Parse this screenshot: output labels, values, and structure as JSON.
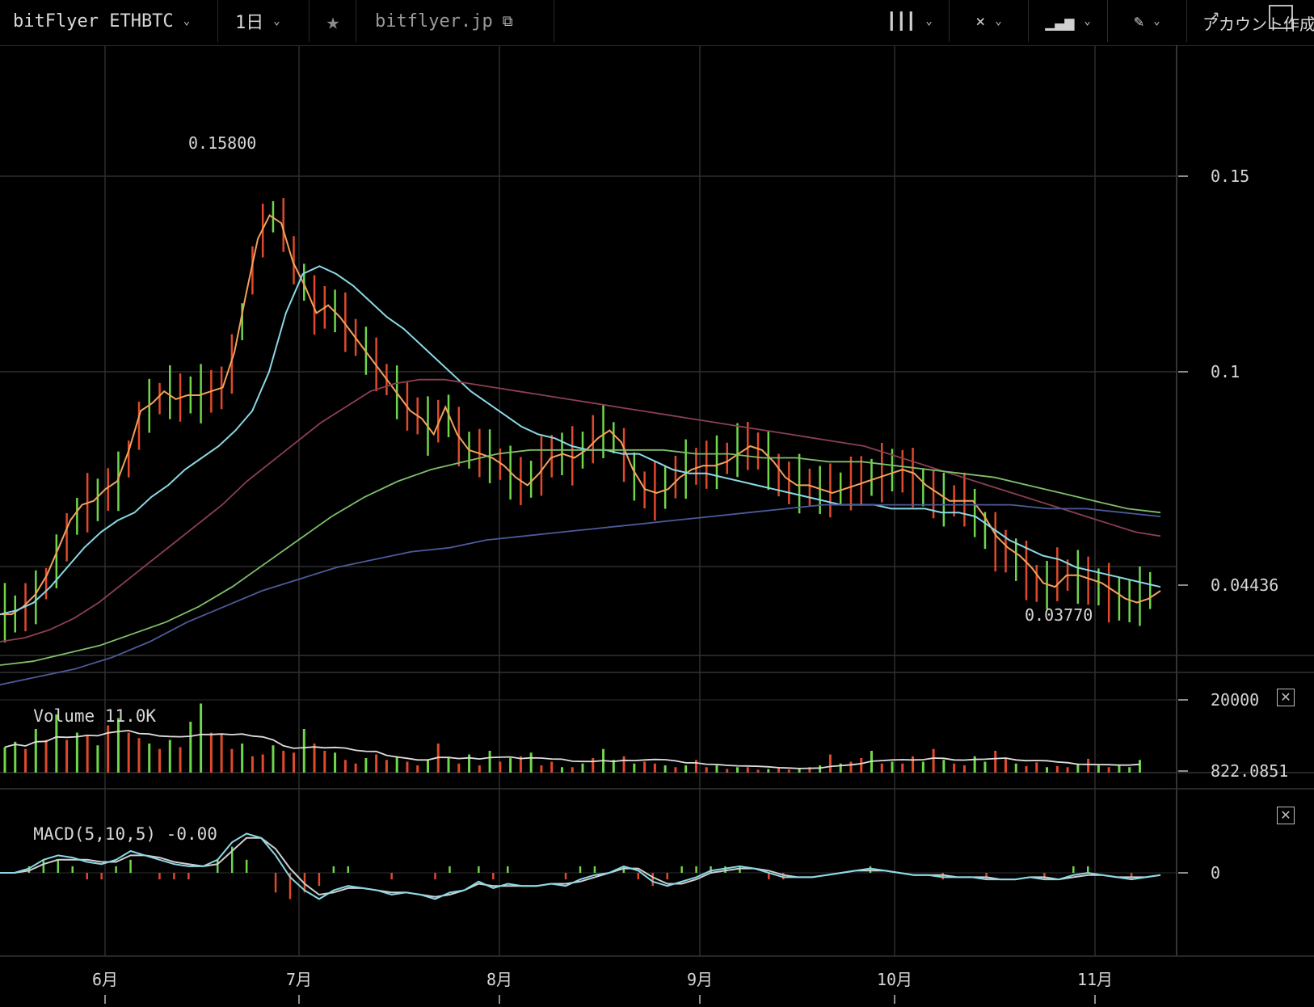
{
  "toolbar": {
    "symbol": "bitFlyer ETHBTC",
    "resolution": "1日",
    "site": "bitflyer.jp",
    "account": "アカウント作成"
  },
  "colors": {
    "up": "#6fd64a",
    "down": "#e0492b",
    "ma_fast": "#f2a25c",
    "ma_mid": "#8ad9e6",
    "ma_slow1": "#8c3f52",
    "ma_slow2": "#7fbf6a",
    "ma_slow3": "#4c5a9a",
    "volume_ma": "#dddddd",
    "grid": "#2e2e2e"
  },
  "price_pane": {
    "annotation_high": "0.15800",
    "annotation_low": "0.03770",
    "last_price": "0.04436"
  },
  "volume_pane": {
    "legend_label": "Volume",
    "legend_value": "11.0K",
    "last_value": "822.0851"
  },
  "macd_pane": {
    "legend_label": "MACD(5,10,5)",
    "legend_value": "-0.00"
  },
  "chart_data": [
    {
      "type": "line",
      "title": "",
      "x_labels": [
        "6月",
        "7月",
        "8月",
        "9月",
        "10月",
        "11月"
      ],
      "y_ticks": [
        "0.15",
        "0.1",
        "0.04436"
      ],
      "ylim": [
        0.02,
        0.18
      ],
      "series": [
        {
          "values": [
            0.038,
            0.038,
            0.04,
            0.043,
            0.048,
            0.055,
            0.062,
            0.066,
            0.067,
            0.07,
            0.072,
            0.08,
            0.09,
            0.092,
            0.095,
            0.093,
            0.094,
            0.094,
            0.095,
            0.096,
            0.105,
            0.12,
            0.134,
            0.14,
            0.138,
            0.128,
            0.122,
            0.115,
            0.117,
            0.114,
            0.11,
            0.106,
            0.102,
            0.098,
            0.094,
            0.09,
            0.088,
            0.084,
            0.091,
            0.084,
            0.08,
            0.079,
            0.078,
            0.076,
            0.073,
            0.071,
            0.074,
            0.078,
            0.079,
            0.078,
            0.08,
            0.083,
            0.085,
            0.082,
            0.075,
            0.07,
            0.069,
            0.07,
            0.073,
            0.075,
            0.076,
            0.076,
            0.077,
            0.079,
            0.081,
            0.08,
            0.077,
            0.073,
            0.071,
            0.071,
            0.07,
            0.069,
            0.07,
            0.071,
            0.072,
            0.073,
            0.074,
            0.075,
            0.074,
            0.071,
            0.069,
            0.067,
            0.067,
            0.067,
            0.063,
            0.058,
            0.055,
            0.053,
            0.05,
            0.046,
            0.045,
            0.048,
            0.048,
            0.047,
            0.046,
            0.044,
            0.042,
            0.041,
            0.042,
            0.044
          ]
        },
        {
          "values": [
            0.038,
            0.039,
            0.041,
            0.045,
            0.05,
            0.055,
            0.059,
            0.062,
            0.064,
            0.068,
            0.071,
            0.075,
            0.078,
            0.081,
            0.085,
            0.09,
            0.1,
            0.115,
            0.125,
            0.127,
            0.125,
            0.122,
            0.118,
            0.114,
            0.111,
            0.107,
            0.103,
            0.099,
            0.095,
            0.092,
            0.089,
            0.086,
            0.084,
            0.083,
            0.081,
            0.08,
            0.08,
            0.079,
            0.079,
            0.077,
            0.075,
            0.074,
            0.074,
            0.073,
            0.072,
            0.071,
            0.07,
            0.069,
            0.068,
            0.067,
            0.066,
            0.066,
            0.066,
            0.065,
            0.065,
            0.065,
            0.064,
            0.064,
            0.063,
            0.06,
            0.057,
            0.055,
            0.053,
            0.052,
            0.05,
            0.049,
            0.048,
            0.047,
            0.046,
            0.045
          ]
        },
        {
          "values": [
            0.031,
            0.032,
            0.034,
            0.037,
            0.041,
            0.046,
            0.051,
            0.056,
            0.061,
            0.066,
            0.072,
            0.077,
            0.082,
            0.087,
            0.091,
            0.095,
            0.097,
            0.098,
            0.098,
            0.097,
            0.096,
            0.095,
            0.094,
            0.093,
            0.092,
            0.091,
            0.09,
            0.089,
            0.088,
            0.087,
            0.086,
            0.085,
            0.084,
            0.083,
            0.082,
            0.081,
            0.079,
            0.077,
            0.075,
            0.073,
            0.071,
            0.069,
            0.067,
            0.065,
            0.063,
            0.061,
            0.059,
            0.058
          ]
        },
        {
          "values": [
            0.025,
            0.026,
            0.028,
            0.03,
            0.033,
            0.036,
            0.04,
            0.045,
            0.051,
            0.057,
            0.063,
            0.068,
            0.072,
            0.075,
            0.077,
            0.079,
            0.08,
            0.08,
            0.08,
            0.08,
            0.08,
            0.079,
            0.079,
            0.078,
            0.078,
            0.077,
            0.077,
            0.076,
            0.075,
            0.074,
            0.073,
            0.071,
            0.069,
            0.067,
            0.065,
            0.064
          ]
        },
        {
          "values": [
            0.02,
            0.022,
            0.024,
            0.027,
            0.031,
            0.036,
            0.04,
            0.044,
            0.047,
            0.05,
            0.052,
            0.054,
            0.055,
            0.057,
            0.058,
            0.059,
            0.06,
            0.061,
            0.062,
            0.063,
            0.064,
            0.065,
            0.066,
            0.066,
            0.066,
            0.066,
            0.066,
            0.066,
            0.065,
            0.065,
            0.064,
            0.063
          ]
        }
      ]
    },
    {
      "type": "bar",
      "title": "Volume",
      "y_ticks": [
        "20000",
        "822.0851"
      ],
      "values": [
        7000,
        8500,
        6500,
        12000,
        9000,
        16000,
        9000,
        11000,
        10000,
        7500,
        13000,
        15000,
        11000,
        9500,
        8000,
        6500,
        9000,
        7000,
        14000,
        19000,
        11000,
        10500,
        6500,
        8000,
        4500,
        5000,
        7500,
        6000,
        5500,
        12000,
        8000,
        6000,
        5500,
        3500,
        2500,
        4000,
        5000,
        3500,
        4500,
        3000,
        2000,
        3500,
        8000,
        4000,
        2500,
        5000,
        2000,
        6000,
        3000,
        4000,
        4500,
        5500,
        2000,
        3000,
        1500,
        1500,
        2500,
        4000,
        6500,
        3500,
        4500,
        2500,
        3000,
        2500,
        2000,
        1500,
        2000,
        3500,
        1500,
        2000,
        1000,
        1500,
        1500,
        800,
        1000,
        1500,
        800,
        1000,
        1500,
        2000,
        5000,
        2500,
        3000,
        4000,
        6000,
        2500,
        3000,
        2500,
        4500,
        3000,
        6500,
        3500,
        2500,
        2000,
        4500,
        3000,
        6000,
        4000,
        2500,
        1800,
        2800,
        1500,
        1800,
        1500,
        2500,
        3800,
        2000,
        1500,
        2000,
        1500,
        3500
      ],
      "up": [
        true,
        true,
        false,
        true,
        false,
        true,
        false,
        true,
        false,
        true,
        false,
        true,
        false,
        false,
        true,
        false,
        true,
        false,
        true,
        true,
        false,
        false,
        false,
        true,
        false,
        false,
        true,
        false,
        false,
        true,
        false,
        false,
        true,
        false,
        false,
        true,
        false,
        false,
        true,
        false,
        false,
        true,
        false,
        true,
        false,
        true,
        false,
        true,
        false,
        true,
        false,
        true,
        false,
        false,
        true,
        false,
        true,
        false,
        true,
        true,
        false,
        true,
        false,
        false,
        true,
        false,
        true,
        false,
        false,
        true,
        false,
        true,
        false,
        false,
        true,
        false,
        false,
        true,
        false,
        true,
        false,
        true,
        false,
        false,
        true,
        false,
        true,
        false,
        false,
        true,
        false,
        true,
        false,
        false,
        true,
        true,
        false,
        false,
        true,
        false,
        false,
        true,
        false,
        false,
        true,
        false,
        true,
        false,
        true,
        true,
        true
      ]
    },
    {
      "type": "line",
      "title": "MACD(5,10,5)",
      "y_ticks": [
        "0"
      ],
      "series": [
        {
          "values": [
            0.0,
            0.0,
            0.002,
            0.006,
            0.008,
            0.007,
            0.005,
            0.004,
            0.006,
            0.01,
            0.008,
            0.006,
            0.004,
            0.003,
            0.003,
            0.006,
            0.014,
            0.018,
            0.016,
            0.008,
            -0.002,
            -0.008,
            -0.012,
            -0.008,
            -0.006,
            -0.007,
            -0.008,
            -0.01,
            -0.009,
            -0.01,
            -0.012,
            -0.009,
            -0.008,
            -0.004,
            -0.007,
            -0.005,
            -0.006,
            -0.006,
            -0.005,
            -0.006,
            -0.003,
            -0.001,
            0.0,
            0.003,
            0.001,
            -0.004,
            -0.006,
            -0.004,
            -0.002,
            0.001,
            0.002,
            0.003,
            0.002,
            0.0,
            -0.002,
            -0.002,
            -0.002,
            -0.001,
            0.0,
            0.001,
            0.002,
            0.001,
            0.0,
            -0.001,
            -0.001,
            -0.002,
            -0.002,
            -0.002,
            -0.003,
            -0.003,
            -0.003,
            -0.002,
            -0.003,
            -0.003,
            -0.001,
            0.0,
            -0.001,
            -0.002,
            -0.003,
            -0.002,
            -0.001
          ]
        },
        {
          "values": [
            0.0,
            0.0,
            0.001,
            0.004,
            0.006,
            0.006,
            0.006,
            0.005,
            0.005,
            0.008,
            0.008,
            0.007,
            0.005,
            0.004,
            0.003,
            0.004,
            0.01,
            0.016,
            0.016,
            0.011,
            0.002,
            -0.005,
            -0.01,
            -0.009,
            -0.007,
            -0.007,
            -0.008,
            -0.009,
            -0.009,
            -0.01,
            -0.011,
            -0.01,
            -0.008,
            -0.005,
            -0.006,
            -0.006,
            -0.006,
            -0.006,
            -0.005,
            -0.005,
            -0.004,
            -0.002,
            0.0,
            0.002,
            0.002,
            -0.002,
            -0.005,
            -0.005,
            -0.003,
            0.0,
            0.001,
            0.002,
            0.002,
            0.001,
            -0.001,
            -0.002,
            -0.002,
            -0.001,
            0.0,
            0.001,
            0.001,
            0.001,
            0.0,
            -0.001,
            -0.001,
            -0.001,
            -0.002,
            -0.002,
            -0.002,
            -0.003,
            -0.003,
            -0.002,
            -0.002,
            -0.003,
            -0.002,
            -0.001,
            -0.001,
            -0.002,
            -0.002,
            -0.002,
            -0.001
          ]
        }
      ]
    }
  ]
}
